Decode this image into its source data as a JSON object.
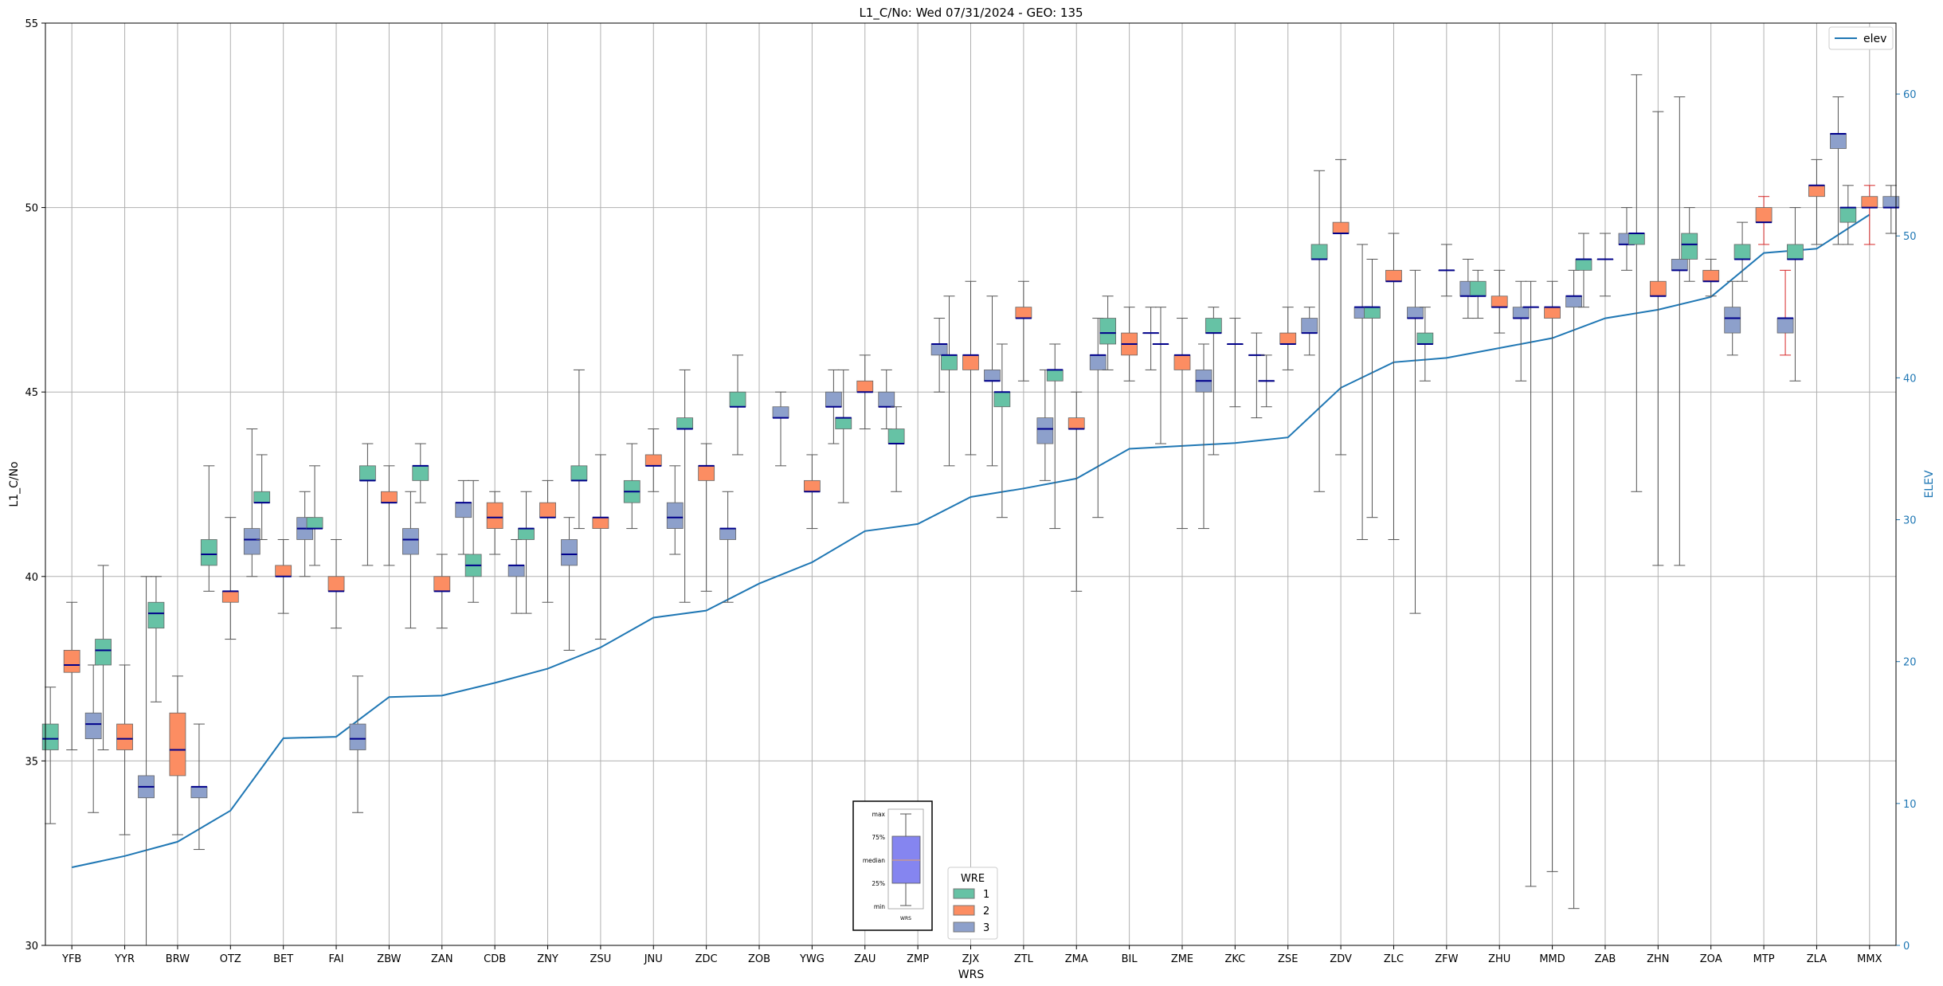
{
  "chart_data": {
    "type": "box",
    "title": "L1_C/No: Wed 07/31/2024 - GEO: 135",
    "xlabel": "WRS",
    "ylabel": "L1_C/No",
    "y2label": "ELEV",
    "ylim": [
      30,
      55
    ],
    "y2lim": [
      0,
      65
    ],
    "yticks": [
      30,
      35,
      40,
      45,
      50,
      55
    ],
    "y2ticks": [
      0,
      10,
      20,
      30,
      40,
      50,
      60
    ],
    "grid": true,
    "categories": [
      "YFB",
      "YYR",
      "BRW",
      "OTZ",
      "BET",
      "FAI",
      "ZBW",
      "ZAN",
      "CDB",
      "ZNY",
      "ZSU",
      "JNU",
      "ZDC",
      "ZOB",
      "YWG",
      "ZAU",
      "ZMP",
      "ZJX",
      "ZTL",
      "ZMA",
      "BIL",
      "ZME",
      "ZKC",
      "ZSE",
      "ZDV",
      "ZLC",
      "ZFW",
      "ZHU",
      "MMD",
      "ZAB",
      "ZHN",
      "ZOA",
      "MTP",
      "ZLA",
      "MMX"
    ],
    "legend_wre": {
      "title": "WRE",
      "placement": "bottom-center",
      "entries": [
        "1",
        "2",
        "3"
      ]
    },
    "legend_elev": {
      "label": "elev",
      "placement": "top-right"
    },
    "colors": {
      "wre1": "#66c2a5",
      "wre2": "#fc8d62",
      "wre3": "#8da0cb",
      "elev": "#1f77b4",
      "median": "#00008b",
      "whisker": "#555555",
      "whisker_red": "#d62728",
      "grid": "#b0b0b0"
    },
    "elev_series": {
      "name": "elev",
      "values": [
        5.5,
        6.3,
        7.3,
        9.5,
        14.6,
        14.7,
        17.5,
        17.6,
        18.5,
        19.5,
        21,
        23.1,
        23.6,
        25.5,
        27,
        29.2,
        29.7,
        31.6,
        32.2,
        32.9,
        35,
        35.2,
        35.4,
        35.8,
        39.3,
        41.1,
        41.4,
        42.1,
        42.8,
        44.2,
        44.8,
        45.7,
        48.8,
        49.1,
        51.5
      ]
    },
    "boxes": [
      {
        "cat": "YFB",
        "wre": 1,
        "min": 33.3,
        "q1": 35.3,
        "med": 35.6,
        "q3": 36,
        "max": 37
      },
      {
        "cat": "YFB",
        "wre": 2,
        "min": 35.3,
        "q1": 37.4,
        "med": 37.6,
        "q3": 38,
        "max": 39.3
      },
      {
        "cat": "YFB",
        "wre": 3,
        "min": 33.6,
        "q1": 35.6,
        "med": 36,
        "q3": 36.3,
        "max": 37.6
      },
      {
        "cat": "YYR",
        "wre": 1,
        "min": 35.3,
        "q1": 37.6,
        "med": 38,
        "q3": 38.3,
        "max": 40.3
      },
      {
        "cat": "YYR",
        "wre": 2,
        "min": 33,
        "q1": 35.3,
        "med": 35.6,
        "q3": 36,
        "max": 37.6
      },
      {
        "cat": "YYR",
        "wre": 3,
        "min": 30,
        "q1": 34,
        "med": 34.3,
        "q3": 34.6,
        "max": 40
      },
      {
        "cat": "BRW",
        "wre": 1,
        "min": 36.6,
        "q1": 38.6,
        "med": 39,
        "q3": 39.3,
        "max": 40
      },
      {
        "cat": "BRW",
        "wre": 2,
        "min": 33,
        "q1": 34.6,
        "med": 35.3,
        "q3": 36.3,
        "max": 37.3
      },
      {
        "cat": "BRW",
        "wre": 3,
        "min": 32.6,
        "q1": 34,
        "med": 34.3,
        "q3": 34.3,
        "max": 36
      },
      {
        "cat": "OTZ",
        "wre": 1,
        "min": 39.6,
        "q1": 40.3,
        "med": 40.6,
        "q3": 41,
        "max": 43
      },
      {
        "cat": "OTZ",
        "wre": 2,
        "min": 38.3,
        "q1": 39.3,
        "med": 39.6,
        "q3": 39.6,
        "max": 41.6
      },
      {
        "cat": "OTZ",
        "wre": 3,
        "min": 40,
        "q1": 40.6,
        "med": 41,
        "q3": 41.3,
        "max": 44
      },
      {
        "cat": "BET",
        "wre": 1,
        "min": 41,
        "q1": 42,
        "med": 42,
        "q3": 42.3,
        "max": 43.3
      },
      {
        "cat": "BET",
        "wre": 2,
        "min": 39,
        "q1": 40,
        "med": 40,
        "q3": 40.3,
        "max": 41
      },
      {
        "cat": "BET",
        "wre": 3,
        "min": 40,
        "q1": 41,
        "med": 41.3,
        "q3": 41.6,
        "max": 42.3
      },
      {
        "cat": "FAI",
        "wre": 1,
        "min": 40.3,
        "q1": 41.3,
        "med": 41.3,
        "q3": 41.6,
        "max": 43
      },
      {
        "cat": "FAI",
        "wre": 2,
        "min": 38.6,
        "q1": 39.6,
        "med": 39.6,
        "q3": 40,
        "max": 41
      },
      {
        "cat": "FAI",
        "wre": 3,
        "min": 33.6,
        "q1": 35.3,
        "med": 35.6,
        "q3": 36,
        "max": 37.3
      },
      {
        "cat": "ZBW",
        "wre": 1,
        "min": 40.3,
        "q1": 42.6,
        "med": 42.6,
        "q3": 43,
        "max": 43.6
      },
      {
        "cat": "ZBW",
        "wre": 2,
        "min": 40.3,
        "q1": 42,
        "med": 42,
        "q3": 42.3,
        "max": 43
      },
      {
        "cat": "ZBW",
        "wre": 3,
        "min": 38.6,
        "q1": 40.6,
        "med": 41,
        "q3": 41.3,
        "max": 42.3
      },
      {
        "cat": "ZAN",
        "wre": 1,
        "min": 42,
        "q1": 42.6,
        "med": 43,
        "q3": 43,
        "max": 43.6
      },
      {
        "cat": "ZAN",
        "wre": 2,
        "min": 38.6,
        "q1": 39.6,
        "med": 39.6,
        "q3": 40,
        "max": 40.6
      },
      {
        "cat": "ZAN",
        "wre": 3,
        "min": 40.6,
        "q1": 41.6,
        "med": 42,
        "q3": 42,
        "max": 42.6
      },
      {
        "cat": "CDB",
        "wre": 1,
        "min": 39.3,
        "q1": 40,
        "med": 40.3,
        "q3": 40.6,
        "max": 42.6
      },
      {
        "cat": "CDB",
        "wre": 2,
        "min": 40.6,
        "q1": 41.3,
        "med": 41.6,
        "q3": 42,
        "max": 42.3
      },
      {
        "cat": "CDB",
        "wre": 3,
        "min": 39,
        "q1": 40,
        "med": 40.3,
        "q3": 40.3,
        "max": 41
      },
      {
        "cat": "ZNY",
        "wre": 1,
        "min": 39,
        "q1": 41,
        "med": 41.3,
        "q3": 41.3,
        "max": 42.3
      },
      {
        "cat": "ZNY",
        "wre": 2,
        "min": 39.3,
        "q1": 41.6,
        "med": 41.6,
        "q3": 42,
        "max": 42.6
      },
      {
        "cat": "ZNY",
        "wre": 3,
        "min": 38,
        "q1": 40.3,
        "med": 40.6,
        "q3": 41,
        "max": 41.6
      },
      {
        "cat": "ZSU",
        "wre": 1,
        "min": 41.3,
        "q1": 42.6,
        "med": 42.6,
        "q3": 43,
        "max": 45.6
      },
      {
        "cat": "ZSU",
        "wre": 2,
        "min": 38.3,
        "q1": 41.3,
        "med": 41.6,
        "q3": 41.6,
        "max": 43.3
      },
      {
        "cat": "JNU",
        "wre": 1,
        "min": 41.3,
        "q1": 42,
        "med": 42.3,
        "q3": 42.6,
        "max": 43.6
      },
      {
        "cat": "JNU",
        "wre": 2,
        "min": 42.3,
        "q1": 43,
        "med": 43,
        "q3": 43.3,
        "max": 44
      },
      {
        "cat": "JNU",
        "wre": 3,
        "min": 40.6,
        "q1": 41.3,
        "med": 41.6,
        "q3": 42,
        "max": 43
      },
      {
        "cat": "ZDC",
        "wre": 1,
        "min": 39.3,
        "q1": 44,
        "med": 44,
        "q3": 44.3,
        "max": 45.6
      },
      {
        "cat": "ZDC",
        "wre": 2,
        "min": 39.6,
        "q1": 42.6,
        "med": 43,
        "q3": 43,
        "max": 43.6
      },
      {
        "cat": "ZDC",
        "wre": 3,
        "min": 39.3,
        "q1": 41,
        "med": 41.3,
        "q3": 41.3,
        "max": 42.3
      },
      {
        "cat": "ZOB",
        "wre": 1,
        "min": 43.3,
        "q1": 44.6,
        "med": 44.6,
        "q3": 45,
        "max": 46
      },
      {
        "cat": "ZOB",
        "wre": 3,
        "min": 43,
        "q1": 44.3,
        "med": 44.3,
        "q3": 44.6,
        "max": 45
      },
      {
        "cat": "YWG",
        "wre": 2,
        "min": 41.3,
        "q1": 42.3,
        "med": 42.3,
        "q3": 42.6,
        "max": 43.3
      },
      {
        "cat": "YWG",
        "wre": 3,
        "min": 43.6,
        "q1": 44.6,
        "med": 44.6,
        "q3": 45,
        "max": 45.6
      },
      {
        "cat": "ZAU",
        "wre": 1,
        "min": 42,
        "q1": 44,
        "med": 44.3,
        "q3": 44.3,
        "max": 45.6
      },
      {
        "cat": "ZAU",
        "wre": 2,
        "min": 44,
        "q1": 45,
        "med": 45,
        "q3": 45.3,
        "max": 46
      },
      {
        "cat": "ZAU",
        "wre": 3,
        "min": 44,
        "q1": 44.6,
        "med": 44.6,
        "q3": 45,
        "max": 45.6
      },
      {
        "cat": "ZMP",
        "wre": 1,
        "min": 42.3,
        "q1": 43.6,
        "med": 43.6,
        "q3": 44,
        "max": 44.6
      },
      {
        "cat": "ZMP",
        "wre": 3,
        "min": 45,
        "q1": 46,
        "med": 46.3,
        "q3": 46.3,
        "max": 47
      },
      {
        "cat": "ZJX",
        "wre": 1,
        "min": 43,
        "q1": 45.6,
        "med": 46,
        "q3": 46,
        "max": 47.6
      },
      {
        "cat": "ZJX",
        "wre": 2,
        "min": 43.3,
        "q1": 45.6,
        "med": 46,
        "q3": 46,
        "max": 48
      },
      {
        "cat": "ZJX",
        "wre": 3,
        "min": 43,
        "q1": 45.3,
        "med": 45.3,
        "q3": 45.6,
        "max": 47.6
      },
      {
        "cat": "ZTL",
        "wre": 1,
        "min": 41.6,
        "q1": 44.6,
        "med": 45,
        "q3": 45,
        "max": 46.3
      },
      {
        "cat": "ZTL",
        "wre": 2,
        "min": 45.3,
        "q1": 47,
        "med": 47,
        "q3": 47.3,
        "max": 48
      },
      {
        "cat": "ZTL",
        "wre": 3,
        "min": 42.6,
        "q1": 43.6,
        "med": 44,
        "q3": 44.3,
        "max": 45.6
      },
      {
        "cat": "ZMA",
        "wre": 1,
        "min": 41.3,
        "q1": 45.3,
        "med": 45.6,
        "q3": 45.6,
        "max": 46.3
      },
      {
        "cat": "ZMA",
        "wre": 2,
        "min": 39.6,
        "q1": 44,
        "med": 44,
        "q3": 44.3,
        "max": 45
      },
      {
        "cat": "ZMA",
        "wre": 3,
        "min": 41.6,
        "q1": 45.6,
        "med": 46,
        "q3": 46,
        "max": 47
      },
      {
        "cat": "BIL",
        "wre": 1,
        "min": 45.6,
        "q1": 46.3,
        "med": 46.6,
        "q3": 47,
        "max": 47.6
      },
      {
        "cat": "BIL",
        "wre": 2,
        "min": 45.3,
        "q1": 46,
        "med": 46.3,
        "q3": 46.6,
        "max": 47.3
      },
      {
        "cat": "BIL",
        "wre": 3,
        "min": 45.6,
        "q1": 46.6,
        "med": 46.6,
        "q3": 46.6,
        "max": 47.3
      },
      {
        "cat": "ZME",
        "wre": 1,
        "min": 43.6,
        "q1": 46.3,
        "med": 46.3,
        "q3": 46.3,
        "max": 47.3
      },
      {
        "cat": "ZME",
        "wre": 2,
        "min": 41.3,
        "q1": 45.6,
        "med": 46,
        "q3": 46,
        "max": 47
      },
      {
        "cat": "ZME",
        "wre": 3,
        "min": 41.3,
        "q1": 45,
        "med": 45.3,
        "q3": 45.6,
        "max": 46.3
      },
      {
        "cat": "ZKC",
        "wre": 1,
        "min": 43.3,
        "q1": 46.6,
        "med": 46.6,
        "q3": 47,
        "max": 47.3
      },
      {
        "cat": "ZKC",
        "wre": 2,
        "min": 44.6,
        "q1": 46.3,
        "med": 46.3,
        "q3": 46.3,
        "max": 47
      },
      {
        "cat": "ZKC",
        "wre": 3,
        "min": 44.3,
        "q1": 46,
        "med": 46,
        "q3": 46,
        "max": 46.6
      },
      {
        "cat": "ZSE",
        "wre": 1,
        "min": 44.6,
        "q1": 45.3,
        "med": 45.3,
        "q3": 45.3,
        "max": 46
      },
      {
        "cat": "ZSE",
        "wre": 2,
        "min": 45.6,
        "q1": 46.3,
        "med": 46.3,
        "q3": 46.6,
        "max": 47.3
      },
      {
        "cat": "ZSE",
        "wre": 3,
        "min": 46,
        "q1": 46.6,
        "med": 46.6,
        "q3": 47,
        "max": 47.3
      },
      {
        "cat": "ZDV",
        "wre": 1,
        "min": 42.3,
        "q1": 48.6,
        "med": 48.6,
        "q3": 49,
        "max": 51
      },
      {
        "cat": "ZDV",
        "wre": 2,
        "min": 43.3,
        "q1": 49.3,
        "med": 49.3,
        "q3": 49.6,
        "max": 51.3
      },
      {
        "cat": "ZDV",
        "wre": 3,
        "min": 41,
        "q1": 47,
        "med": 47.3,
        "q3": 47.3,
        "max": 49
      },
      {
        "cat": "ZLC",
        "wre": 1,
        "min": 41.6,
        "q1": 47,
        "med": 47.3,
        "q3": 47.3,
        "max": 48.6
      },
      {
        "cat": "ZLC",
        "wre": 2,
        "min": 41,
        "q1": 48,
        "med": 48,
        "q3": 48.3,
        "max": 49.3
      },
      {
        "cat": "ZLC",
        "wre": 3,
        "min": 39,
        "q1": 47,
        "med": 47,
        "q3": 47.3,
        "max": 48.3
      },
      {
        "cat": "ZFW",
        "wre": 1,
        "min": 45.3,
        "q1": 46.3,
        "med": 46.3,
        "q3": 46.6,
        "max": 47.3
      },
      {
        "cat": "ZFW",
        "wre": 2,
        "min": 47.6,
        "q1": 48.3,
        "med": 48.3,
        "q3": 48.3,
        "max": 49
      },
      {
        "cat": "ZFW",
        "wre": 3,
        "min": 47,
        "q1": 47.6,
        "med": 47.6,
        "q3": 48,
        "max": 48.6
      },
      {
        "cat": "ZHU",
        "wre": 1,
        "min": 47,
        "q1": 47.6,
        "med": 47.6,
        "q3": 48,
        "max": 48.3
      },
      {
        "cat": "ZHU",
        "wre": 2,
        "min": 46.6,
        "q1": 47.3,
        "med": 47.3,
        "q3": 47.6,
        "max": 48.3
      },
      {
        "cat": "ZHU",
        "wre": 3,
        "min": 45.3,
        "q1": 47,
        "med": 47,
        "q3": 47.3,
        "max": 48
      },
      {
        "cat": "MMD",
        "wre": 1,
        "min": 31.6,
        "q1": 47.3,
        "med": 47.3,
        "q3": 47.3,
        "max": 48
      },
      {
        "cat": "MMD",
        "wre": 2,
        "min": 32,
        "q1": 47,
        "med": 47.3,
        "q3": 47.3,
        "max": 48
      },
      {
        "cat": "MMD",
        "wre": 3,
        "min": 31,
        "q1": 47.3,
        "med": 47.6,
        "q3": 47.6,
        "max": 48.3
      },
      {
        "cat": "ZAB",
        "wre": 1,
        "min": 47.3,
        "q1": 48.3,
        "med": 48.6,
        "q3": 48.6,
        "max": 49.3
      },
      {
        "cat": "ZAB",
        "wre": 2,
        "min": 47.6,
        "q1": 48.6,
        "med": 48.6,
        "q3": 48.6,
        "max": 49.3
      },
      {
        "cat": "ZAB",
        "wre": 3,
        "min": 48.3,
        "q1": 49,
        "med": 49,
        "q3": 49.3,
        "max": 50
      },
      {
        "cat": "ZHN",
        "wre": 1,
        "min": 42.3,
        "q1": 49,
        "med": 49.3,
        "q3": 49.3,
        "max": 53.6
      },
      {
        "cat": "ZHN",
        "wre": 2,
        "min": 40.3,
        "q1": 47.6,
        "med": 47.6,
        "q3": 48,
        "max": 52.6
      },
      {
        "cat": "ZHN",
        "wre": 3,
        "min": 40.3,
        "q1": 48.3,
        "med": 48.3,
        "q3": 48.6,
        "max": 53
      },
      {
        "cat": "ZOA",
        "wre": 1,
        "min": 48,
        "q1": 48.6,
        "med": 49,
        "q3": 49.3,
        "max": 50
      },
      {
        "cat": "ZOA",
        "wre": 2,
        "min": 47.6,
        "q1": 48,
        "med": 48,
        "q3": 48.3,
        "max": 48.6
      },
      {
        "cat": "ZOA",
        "wre": 3,
        "min": 46,
        "q1": 46.6,
        "med": 47,
        "q3": 47.3,
        "max": 48
      },
      {
        "cat": "MTP",
        "wre": 1,
        "min": 48,
        "q1": 48.6,
        "med": 48.6,
        "q3": 49,
        "max": 49.6
      },
      {
        "cat": "MTP",
        "wre": 2,
        "min": 49,
        "q1": 49.6,
        "med": 49.6,
        "q3": 50,
        "max": 50.3
      },
      {
        "cat": "MTP",
        "wre": 3,
        "min": 46,
        "q1": 46.6,
        "med": 47,
        "q3": 47,
        "max": 48.3
      },
      {
        "cat": "ZLA",
        "wre": 1,
        "min": 45.3,
        "q1": 48.6,
        "med": 48.6,
        "q3": 49,
        "max": 50
      },
      {
        "cat": "ZLA",
        "wre": 2,
        "min": 49,
        "q1": 50.3,
        "med": 50.6,
        "q3": 50.6,
        "max": 51.3
      },
      {
        "cat": "ZLA",
        "wre": 3,
        "min": 49,
        "q1": 51.6,
        "med": 52,
        "q3": 52,
        "max": 53
      },
      {
        "cat": "MMX",
        "wre": 1,
        "min": 49,
        "q1": 49.6,
        "med": 50,
        "q3": 50,
        "max": 50.6
      },
      {
        "cat": "MMX",
        "wre": 2,
        "min": 49,
        "q1": 50,
        "med": 50,
        "q3": 50.3,
        "max": 50.6
      },
      {
        "cat": "MMX",
        "wre": 3,
        "min": 49.3,
        "q1": 50,
        "med": 50,
        "q3": 50.3,
        "max": 50.6
      }
    ],
    "inset": {
      "labels": [
        "max",
        "75%",
        "median",
        "25%",
        "min"
      ],
      "xlabel": "WRS"
    }
  }
}
